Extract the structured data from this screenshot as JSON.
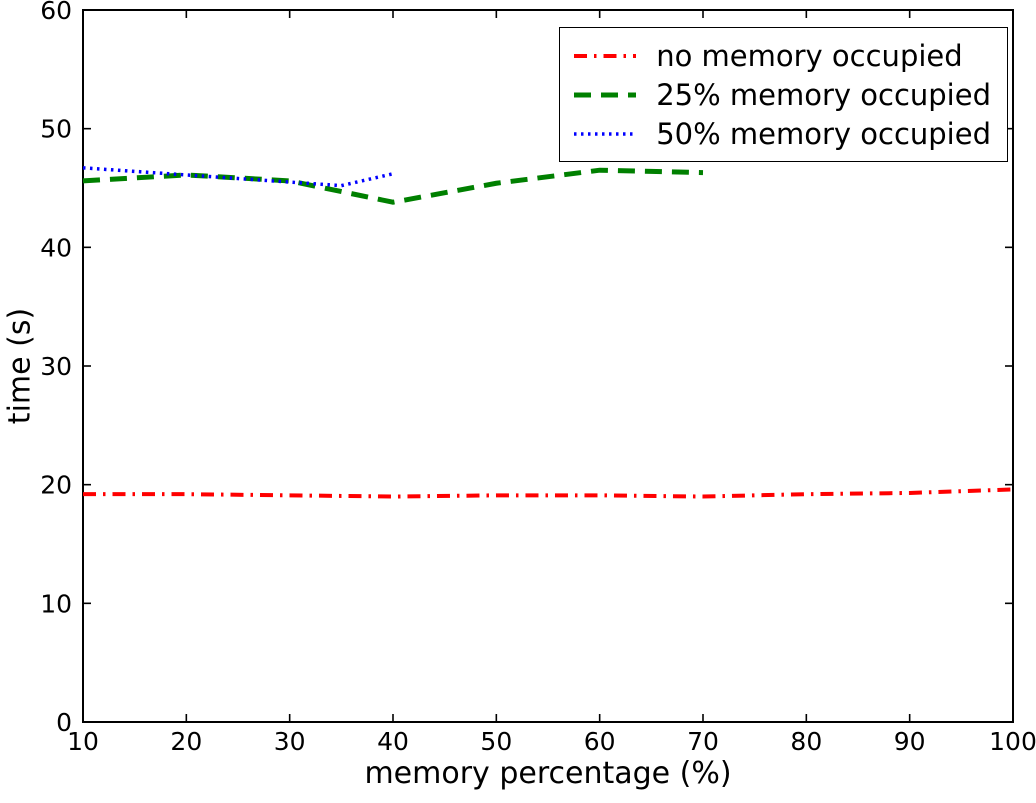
{
  "figure": {
    "background": "#ffffff",
    "axis_color": "#000000"
  },
  "chart_data": {
    "type": "line",
    "title": "",
    "xlabel": "memory percentage (%)",
    "ylabel": "time (s)",
    "xlim": [
      10,
      100
    ],
    "ylim": [
      0,
      60
    ],
    "xticks": [
      10,
      20,
      30,
      40,
      50,
      60,
      70,
      80,
      90,
      100
    ],
    "yticks": [
      0,
      10,
      20,
      30,
      40,
      50,
      60
    ],
    "grid": false,
    "legend_position": "upper right",
    "series": [
      {
        "name": "no memory occupied",
        "style": "dash-dot",
        "color": "#ff0000",
        "line_width": 4,
        "dash": "13 7 2.5 7",
        "x": [
          10,
          20,
          30,
          40,
          50,
          60,
          70,
          80,
          90,
          100
        ],
        "y": [
          19.2,
          19.2,
          19.1,
          19.0,
          19.1,
          19.1,
          19.0,
          19.2,
          19.3,
          19.6
        ]
      },
      {
        "name": "25% memory occupied",
        "style": "dashed",
        "color": "#008000",
        "line_width": 5,
        "dash": "17 10",
        "x": [
          10,
          20,
          30,
          40,
          50,
          60,
          70
        ],
        "y": [
          45.6,
          46.1,
          45.6,
          43.8,
          45.4,
          46.5,
          46.3
        ]
      },
      {
        "name": "50% memory occupied",
        "style": "dotted",
        "color": "#0000ff",
        "line_width": 3.5,
        "dash": "2.5 4.5",
        "x": [
          10,
          20,
          30,
          35,
          40
        ],
        "y": [
          46.7,
          46.1,
          45.5,
          45.2,
          46.2
        ]
      }
    ]
  }
}
